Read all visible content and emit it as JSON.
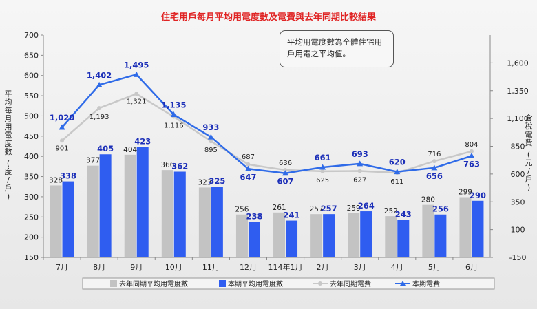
{
  "chart_data": {
    "type": "bar",
    "title": "住宅用戶每月平均用電度數及電費與去年同期比較結果",
    "categories": [
      "7月",
      "8月",
      "9月",
      "10月",
      "11月",
      "12月",
      "114年1月",
      "2月",
      "3月",
      "4月",
      "5月",
      "6月"
    ],
    "ylabel": "平均每月用電度數 (度/戶)",
    "ylabel_right": "含稅電費 (元/戶)",
    "ylim": [
      150,
      700
    ],
    "ylim_right": [
      -150,
      1850
    ],
    "yticks": [
      150,
      200,
      250,
      300,
      350,
      400,
      450,
      500,
      550,
      600,
      650,
      700
    ],
    "yticks_right": [
      -150,
      100,
      350,
      600,
      850,
      1100,
      1350,
      1600
    ],
    "series": [
      {
        "name": "去年同期平均用電度數",
        "type": "bar",
        "axis": "left",
        "color": "#c3c3c3",
        "values": [
          328,
          377,
          404,
          366,
          323,
          256,
          261,
          257,
          259,
          252,
          280,
          299
        ]
      },
      {
        "name": "本期平均用電度數",
        "type": "bar",
        "axis": "left",
        "color": "#2f5df0",
        "values": [
          338,
          405,
          423,
          362,
          325,
          238,
          241,
          257,
          264,
          243,
          256,
          290
        ]
      },
      {
        "name": "去年同期電費",
        "type": "line",
        "axis": "right",
        "color": "#c8c8c8",
        "values": [
          901,
          1193,
          1321,
          1116,
          895,
          687,
          636,
          625,
          627,
          611,
          716,
          804
        ]
      },
      {
        "name": "本期電費",
        "type": "line",
        "axis": "right",
        "color": "#2f6be8",
        "values": [
          1020,
          1402,
          1495,
          1135,
          933,
          647,
          607,
          661,
          693,
          620,
          656,
          763
        ]
      }
    ],
    "legend_position": "bottom",
    "grid": false,
    "annotation": [
      "平均用電度數為全體住宅用",
      "戶用電之平均值。"
    ]
  }
}
